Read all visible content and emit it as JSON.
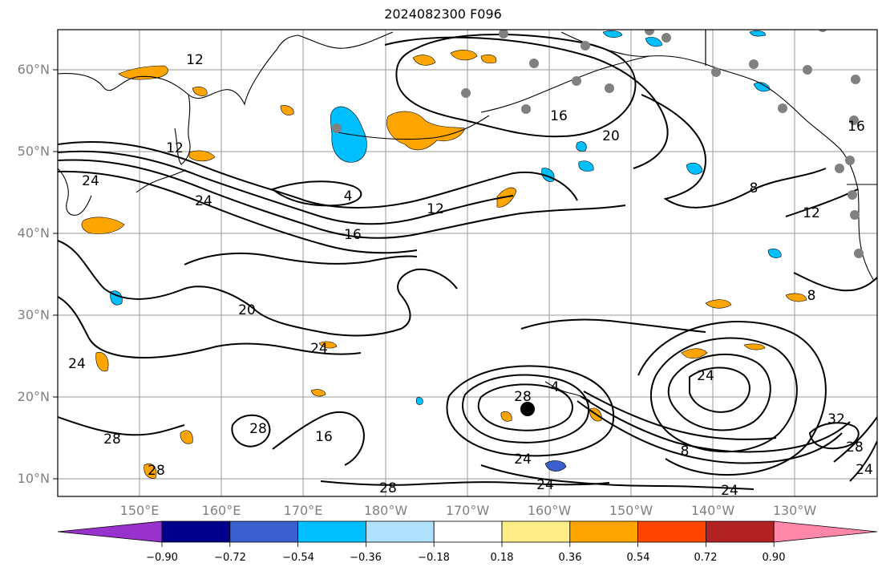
{
  "title": "2024082300 F096",
  "latitude_labels": [
    "60°N",
    "50°N",
    "40°N",
    "30°N",
    "20°N",
    "10°N"
  ],
  "longitude_labels": [
    "150°E",
    "160°E",
    "170°E",
    "180°W",
    "170°W",
    "160°W",
    "150°W",
    "140°W",
    "130°W"
  ],
  "contour_labels": [
    "12",
    "16",
    "20",
    "8",
    "24",
    "4",
    "12",
    "16",
    "20",
    "24",
    "28",
    "28",
    "24",
    "28",
    "24",
    "16",
    "28",
    "24",
    "8",
    "12",
    "24",
    "28",
    "32",
    "24",
    "24",
    "28",
    "8",
    "24",
    "4",
    "16",
    "12"
  ],
  "colorbar": {
    "ticks": [
      "−0.90",
      "−0.72",
      "−0.54",
      "−0.36",
      "−0.18",
      "0.18",
      "0.36",
      "0.54",
      "0.72",
      "0.90"
    ],
    "colors": [
      "#9932cc",
      "#00008b",
      "#3a5fcd",
      "#00bfff",
      "#b0e2ff",
      "#ffffff",
      "#ffee88",
      "#ffa500",
      "#ff4500",
      "#b22222",
      "#ff88aa"
    ]
  }
}
